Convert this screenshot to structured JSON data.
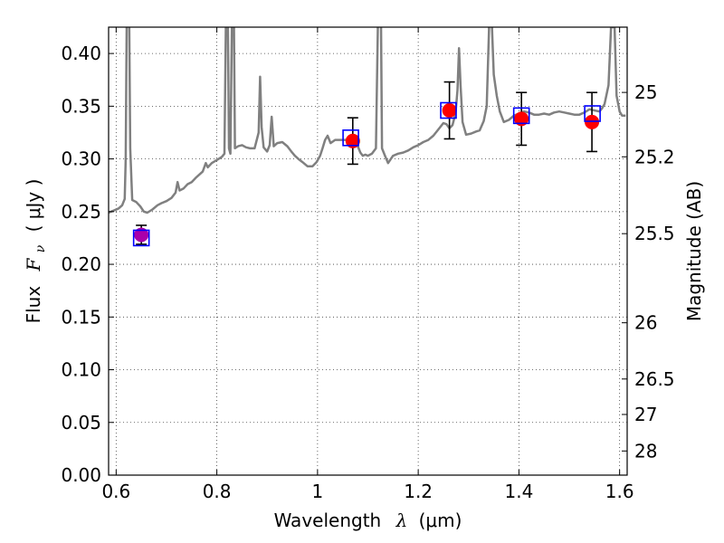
{
  "chart_data": {
    "type": "scatter",
    "xlabel_text": "Wavelength",
    "xlabel_symbol": "λ",
    "xlabel_unit": "(μm)",
    "ylabel_text": "Flux",
    "ylabel_symbol": "F",
    "ylabel_subscript": "ν",
    "ylabel_unit": "( μJy )",
    "y2label": "Magnitude (AB)",
    "xlim": [
      0.585,
      1.615
    ],
    "ylim": [
      0.0,
      0.425
    ],
    "grid": true,
    "x_ticks": [
      0.6,
      0.8,
      1.0,
      1.2,
      1.4,
      1.6
    ],
    "x_tick_labels": [
      "0.6",
      "0.8",
      "1",
      "1.2",
      "1.4",
      "1.6"
    ],
    "y_ticks": [
      0.0,
      0.05,
      0.1,
      0.15,
      0.2,
      0.25,
      0.3,
      0.35,
      0.4
    ],
    "y_tick_labels": [
      "0.00",
      "0.05",
      "0.10",
      "0.15",
      "0.20",
      "0.25",
      "0.30",
      "0.35",
      "0.40"
    ],
    "y2_ticks": [
      25,
      25.2,
      25.5,
      26,
      26.5,
      27,
      28
    ],
    "y2_tick_labels": [
      "25",
      "25.2",
      "25.5",
      "26",
      "26.5",
      "27",
      "28"
    ],
    "colors": {
      "spectrum": "#808080",
      "model_marker": "#0000ff",
      "observed_point": "#ff0000",
      "blended_point": "#aa00aa",
      "errorbar": "#000000"
    },
    "series": [
      {
        "type": "line",
        "points": [
          [
            0.585,
            0.249
          ],
          [
            0.595,
            0.251
          ],
          [
            0.605,
            0.253
          ],
          [
            0.612,
            0.256
          ],
          [
            0.617,
            0.262
          ],
          [
            0.619,
            0.3
          ],
          [
            0.621,
            0.43
          ],
          [
            0.626,
            0.43
          ],
          [
            0.628,
            0.31
          ],
          [
            0.632,
            0.261
          ],
          [
            0.64,
            0.259
          ],
          [
            0.648,
            0.255
          ],
          [
            0.655,
            0.25
          ],
          [
            0.662,
            0.249
          ],
          [
            0.672,
            0.252
          ],
          [
            0.682,
            0.256
          ],
          [
            0.69,
            0.258
          ],
          [
            0.7,
            0.26
          ],
          [
            0.71,
            0.263
          ],
          [
            0.718,
            0.268
          ],
          [
            0.722,
            0.278
          ],
          [
            0.726,
            0.27
          ],
          [
            0.734,
            0.272
          ],
          [
            0.742,
            0.276
          ],
          [
            0.75,
            0.278
          ],
          [
            0.758,
            0.282
          ],
          [
            0.765,
            0.285
          ],
          [
            0.772,
            0.288
          ],
          [
            0.778,
            0.296
          ],
          [
            0.782,
            0.292
          ],
          [
            0.79,
            0.296
          ],
          [
            0.8,
            0.299
          ],
          [
            0.81,
            0.302
          ],
          [
            0.815,
            0.305
          ],
          [
            0.818,
            0.43
          ],
          [
            0.822,
            0.43
          ],
          [
            0.824,
            0.31
          ],
          [
            0.827,
            0.305
          ],
          [
            0.83,
            0.43
          ],
          [
            0.834,
            0.43
          ],
          [
            0.836,
            0.31
          ],
          [
            0.842,
            0.312
          ],
          [
            0.85,
            0.313
          ],
          [
            0.858,
            0.311
          ],
          [
            0.866,
            0.31
          ],
          [
            0.875,
            0.31
          ],
          [
            0.883,
            0.325
          ],
          [
            0.886,
            0.378
          ],
          [
            0.889,
            0.33
          ],
          [
            0.893,
            0.311
          ],
          [
            0.9,
            0.307
          ],
          [
            0.905,
            0.313
          ],
          [
            0.909,
            0.34
          ],
          [
            0.913,
            0.312
          ],
          [
            0.92,
            0.315
          ],
          [
            0.93,
            0.316
          ],
          [
            0.94,
            0.312
          ],
          [
            0.948,
            0.307
          ],
          [
            0.955,
            0.303
          ],
          [
            0.962,
            0.3
          ],
          [
            0.97,
            0.297
          ],
          [
            0.98,
            0.293
          ],
          [
            0.99,
            0.293
          ],
          [
            0.998,
            0.297
          ],
          [
            1.005,
            0.303
          ],
          [
            1.01,
            0.31
          ],
          [
            1.015,
            0.318
          ],
          [
            1.02,
            0.322
          ],
          [
            1.026,
            0.315
          ],
          [
            1.035,
            0.318
          ],
          [
            1.045,
            0.318
          ],
          [
            1.06,
            0.318
          ],
          [
            1.07,
            0.316
          ],
          [
            1.08,
            0.312
          ],
          [
            1.085,
            0.306
          ],
          [
            1.09,
            0.303
          ],
          [
            1.095,
            0.304
          ],
          [
            1.1,
            0.303
          ],
          [
            1.108,
            0.305
          ],
          [
            1.116,
            0.31
          ],
          [
            1.12,
            0.43
          ],
          [
            1.126,
            0.43
          ],
          [
            1.128,
            0.31
          ],
          [
            1.134,
            0.303
          ],
          [
            1.14,
            0.296
          ],
          [
            1.15,
            0.303
          ],
          [
            1.16,
            0.305
          ],
          [
            1.17,
            0.306
          ],
          [
            1.18,
            0.308
          ],
          [
            1.19,
            0.311
          ],
          [
            1.2,
            0.313
          ],
          [
            1.21,
            0.316
          ],
          [
            1.22,
            0.318
          ],
          [
            1.23,
            0.322
          ],
          [
            1.24,
            0.328
          ],
          [
            1.25,
            0.334
          ],
          [
            1.256,
            0.333
          ],
          [
            1.262,
            0.329
          ],
          [
            1.268,
            0.332
          ],
          [
            1.274,
            0.343
          ],
          [
            1.278,
            0.365
          ],
          [
            1.281,
            0.405
          ],
          [
            1.284,
            0.37
          ],
          [
            1.288,
            0.335
          ],
          [
            1.295,
            0.323
          ],
          [
            1.305,
            0.324
          ],
          [
            1.315,
            0.326
          ],
          [
            1.322,
            0.327
          ],
          [
            1.33,
            0.336
          ],
          [
            1.336,
            0.35
          ],
          [
            1.341,
            0.43
          ],
          [
            1.346,
            0.43
          ],
          [
            1.35,
            0.38
          ],
          [
            1.356,
            0.36
          ],
          [
            1.362,
            0.345
          ],
          [
            1.37,
            0.335
          ],
          [
            1.38,
            0.337
          ],
          [
            1.39,
            0.341
          ],
          [
            1.4,
            0.343
          ],
          [
            1.41,
            0.345
          ],
          [
            1.42,
            0.344
          ],
          [
            1.43,
            0.342
          ],
          [
            1.44,
            0.342
          ],
          [
            1.45,
            0.343
          ],
          [
            1.46,
            0.342
          ],
          [
            1.47,
            0.344
          ],
          [
            1.48,
            0.345
          ],
          [
            1.49,
            0.344
          ],
          [
            1.5,
            0.343
          ],
          [
            1.51,
            0.342
          ],
          [
            1.52,
            0.342
          ],
          [
            1.53,
            0.344
          ],
          [
            1.54,
            0.347
          ],
          [
            1.55,
            0.346
          ],
          [
            1.56,
            0.345
          ],
          [
            1.565,
            0.348
          ],
          [
            1.57,
            0.352
          ],
          [
            1.578,
            0.37
          ],
          [
            1.583,
            0.425
          ],
          [
            1.59,
            0.425
          ],
          [
            1.594,
            0.36
          ],
          [
            1.6,
            0.345
          ],
          [
            1.605,
            0.341
          ],
          [
            1.612,
            0.341
          ]
        ]
      },
      {
        "type": "scatter-squares",
        "points": [
          [
            0.65,
            0.225
          ],
          [
            1.066,
            0.32
          ],
          [
            1.26,
            0.346
          ],
          [
            1.405,
            0.341
          ],
          [
            1.546,
            0.343
          ]
        ]
      },
      {
        "type": "scatter-circles-errorbars",
        "points": [
          [
            0.65,
            0.228,
            0.009
          ],
          [
            1.07,
            0.317,
            0.022
          ],
          [
            1.262,
            0.346,
            0.027
          ],
          [
            1.405,
            0.338,
            0.025
          ],
          [
            1.545,
            0.335,
            0.028
          ]
        ]
      }
    ]
  }
}
